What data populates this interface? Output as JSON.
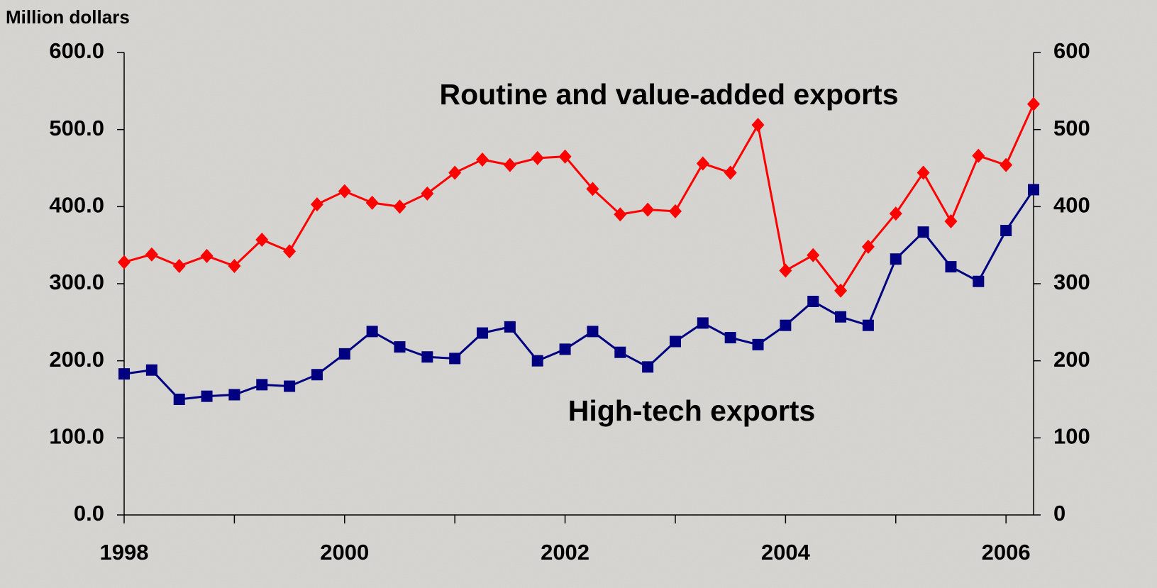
{
  "chart_data": {
    "type": "line",
    "y_axis_label": "Million dollars",
    "x": [
      1998,
      1998.25,
      1998.5,
      1998.75,
      1999,
      1999.25,
      1999.5,
      1999.75,
      2000,
      2000.25,
      2000.5,
      2000.75,
      2001,
      2001.25,
      2001.5,
      2001.75,
      2002,
      2002.25,
      2002.5,
      2002.75,
      2003,
      2003.25,
      2003.5,
      2003.75,
      2004,
      2004.25,
      2004.5,
      2004.75,
      2005,
      2005.25,
      2005.5,
      2005.75,
      2006,
      2006.25
    ],
    "series": [
      {
        "name": "Routine and value-added exports",
        "color": "#ff0000",
        "marker": "diamond",
        "values": [
          328,
          338,
          323,
          336,
          323,
          357,
          342,
          403,
          420,
          405,
          400,
          417,
          444,
          461,
          454,
          463,
          465,
          423,
          390,
          396,
          394,
          456,
          444,
          506,
          317,
          337,
          291,
          348,
          391,
          444,
          381,
          466,
          454,
          533
        ]
      },
      {
        "name": "High-tech exports",
        "color": "#000080",
        "marker": "square",
        "values": [
          183,
          188,
          150,
          154,
          156,
          169,
          167,
          182,
          209,
          238,
          218,
          205,
          203,
          236,
          244,
          200,
          215,
          238,
          211,
          192,
          225,
          249,
          230,
          221,
          246,
          277,
          257,
          246,
          332,
          367,
          322,
          303,
          369,
          422
        ]
      }
    ],
    "xlim": [
      1998,
      2006.25
    ],
    "xticks": [
      1998,
      2000,
      2002,
      2004,
      2006
    ],
    "xminorticks": [
      1999,
      2001,
      2003,
      2005
    ],
    "ylim": [
      0,
      600
    ],
    "yticks": [
      {
        "value": 0,
        "label": "0.0"
      },
      {
        "value": 100,
        "label": "100.0"
      },
      {
        "value": 200,
        "label": "200.0"
      },
      {
        "value": 300,
        "label": "300.0"
      },
      {
        "value": 400,
        "label": "400.0"
      },
      {
        "value": 500,
        "label": "500.0"
      },
      {
        "value": 600,
        "label": "600.0"
      }
    ],
    "y2lim": [
      0,
      600
    ],
    "y2ticks": [
      0,
      100,
      200,
      300,
      400,
      500,
      600
    ],
    "grid": false
  }
}
